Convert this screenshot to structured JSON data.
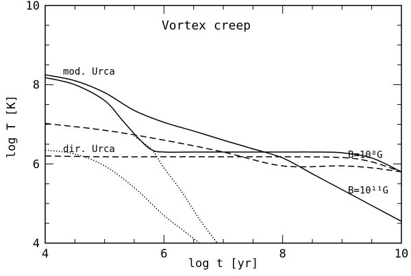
{
  "chart_data": {
    "type": "line",
    "title": "Vortex creep",
    "xlabel": "log t [yr]",
    "ylabel": "log T [K]",
    "xlim": [
      4,
      10
    ],
    "ylim": [
      4,
      10
    ],
    "x_ticks": [
      "4",
      "6",
      "8",
      "10"
    ],
    "y_ticks": [
      "4",
      "6",
      "8",
      "10"
    ],
    "grid": false,
    "annotations": [
      {
        "text": "mod. Urca",
        "x": 4.3,
        "y": 8.25
      },
      {
        "text": "dir. Urca",
        "x": 4.3,
        "y": 6.3
      },
      {
        "text": "B=10⁸G",
        "x": 9.1,
        "y": 6.15
      },
      {
        "text": "B=10¹¹G",
        "x": 9.1,
        "y": 5.25
      }
    ],
    "series": [
      {
        "style": "solid",
        "x": [
          4.0,
          4.5,
          5.0,
          5.5,
          6.0,
          6.5,
          7.0,
          7.5,
          8.0,
          8.5,
          9.0,
          9.5,
          10.0
        ],
        "y": [
          8.25,
          8.1,
          7.8,
          7.35,
          7.05,
          6.83,
          6.6,
          6.38,
          6.15,
          5.75,
          5.35,
          4.95,
          4.55
        ]
      },
      {
        "style": "solid",
        "x": [
          4.0,
          4.5,
          5.0,
          5.3,
          5.6,
          5.8,
          6.0,
          6.5,
          7.0,
          8.0,
          8.5,
          9.0,
          9.5,
          10.0
        ],
        "y": [
          8.18,
          8.0,
          7.6,
          7.1,
          6.6,
          6.35,
          6.3,
          6.3,
          6.3,
          6.3,
          6.3,
          6.28,
          6.15,
          5.8
        ]
      },
      {
        "style": "dashed",
        "x": [
          4.0,
          5.0,
          6.0,
          7.0,
          8.0,
          9.0,
          9.5,
          10.0
        ],
        "y": [
          7.02,
          6.85,
          6.6,
          6.3,
          5.95,
          5.95,
          5.9,
          5.8
        ]
      },
      {
        "style": "dashed",
        "x": [
          4.0,
          5.0,
          6.0,
          7.0,
          8.0,
          9.0,
          9.5,
          10.0
        ],
        "y": [
          6.2,
          6.18,
          6.18,
          6.18,
          6.18,
          6.16,
          6.05,
          5.8
        ]
      },
      {
        "style": "dotted",
        "x": [
          4.0,
          4.5,
          5.0,
          5.5,
          6.0,
          6.3,
          6.6
        ],
        "y": [
          6.35,
          6.25,
          5.95,
          5.4,
          4.7,
          4.35,
          4.0
        ]
      },
      {
        "style": "dotted",
        "x": [
          5.5,
          5.8,
          6.0,
          6.3,
          6.6,
          6.9
        ],
        "y": [
          6.7,
          6.35,
          5.9,
          5.3,
          4.6,
          4.0
        ]
      }
    ]
  }
}
